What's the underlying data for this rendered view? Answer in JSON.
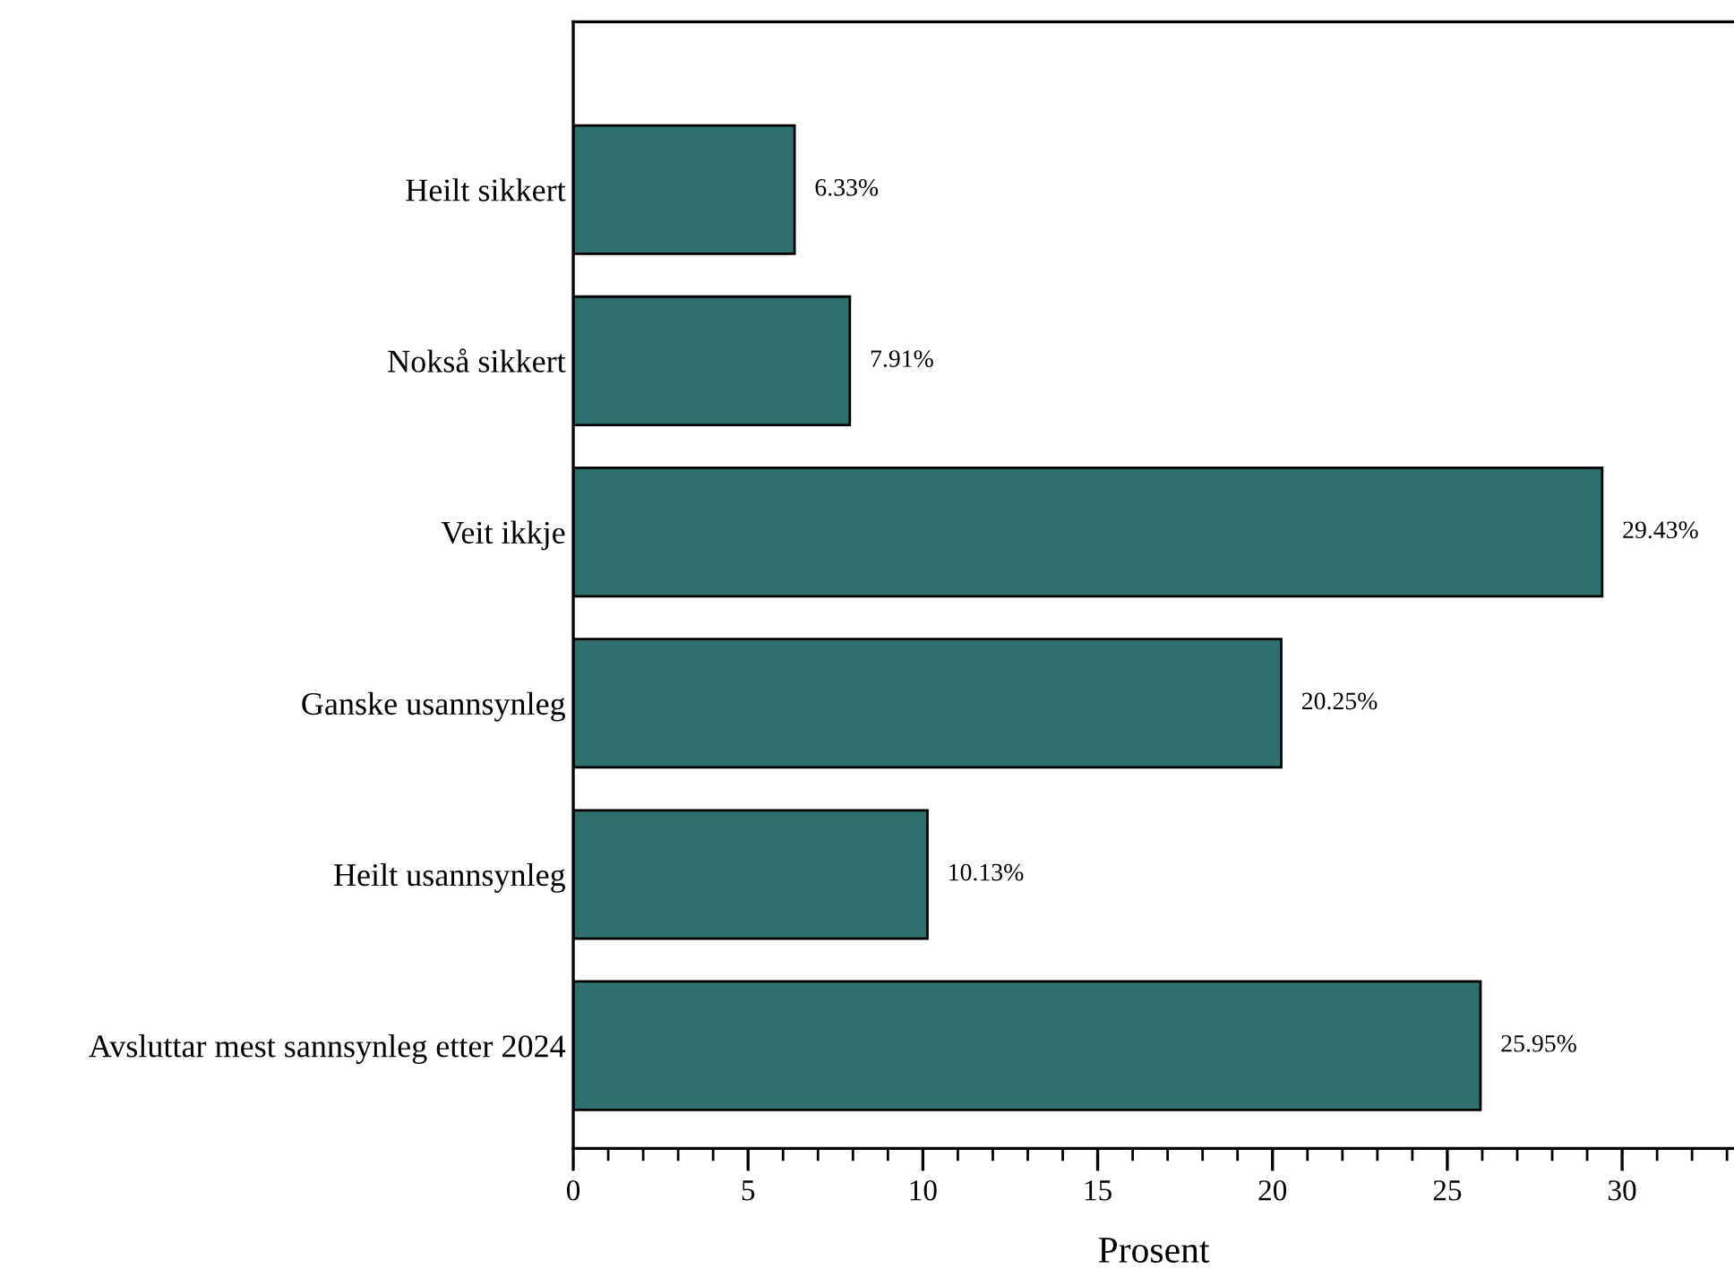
{
  "chart_data": {
    "type": "bar",
    "orientation": "horizontal",
    "xlabel": "Prosent",
    "categories": [
      "Heilt sikkert",
      "Nokså sikkert",
      "Veit ikkje",
      "Ganske usannsynleg",
      "Heilt usannsynleg",
      "Avsluttar mest sannsynleg etter 2024"
    ],
    "values": [
      6.33,
      7.91,
      29.43,
      20.25,
      10.13,
      25.95
    ],
    "value_labels": [
      "6.33%",
      "7.91%",
      "29.43%",
      "20.25%",
      "10.13%",
      "25.95%"
    ],
    "color": "#2e706d",
    "xlim": [
      0,
      33.2
    ],
    "xticks": [
      0,
      {
        "value": 1,
        "label": null
      },
      {
        "value": 2,
        "label": null
      },
      {
        "value": 3,
        "label": null
      },
      {
        "value": 4,
        "label": null
      },
      5,
      {
        "value": 6,
        "label": null
      },
      {
        "value": 7,
        "label": null
      },
      {
        "value": 8,
        "label": null
      },
      {
        "value": 9,
        "label": null
      },
      10,
      {
        "value": 11,
        "label": null
      },
      {
        "value": 12,
        "label": null
      },
      {
        "value": 13,
        "label": null
      },
      {
        "value": 14,
        "label": null
      },
      15,
      {
        "value": 16,
        "label": null
      },
      {
        "value": 17,
        "label": null
      },
      {
        "value": 18,
        "label": null
      },
      {
        "value": 19,
        "label": null
      },
      20,
      {
        "value": 21,
        "label": null
      },
      {
        "value": 22,
        "label": null
      },
      {
        "value": 23,
        "label": null
      },
      {
        "value": 24,
        "label": null
      },
      25,
      {
        "value": 26,
        "label": null
      },
      {
        "value": 27,
        "label": null
      },
      {
        "value": 28,
        "label": null
      },
      {
        "value": 29,
        "label": null
      },
      30,
      {
        "value": 31,
        "label": null
      },
      {
        "value": 32,
        "label": null
      },
      {
        "value": 33,
        "label": null
      }
    ],
    "grid": false
  }
}
